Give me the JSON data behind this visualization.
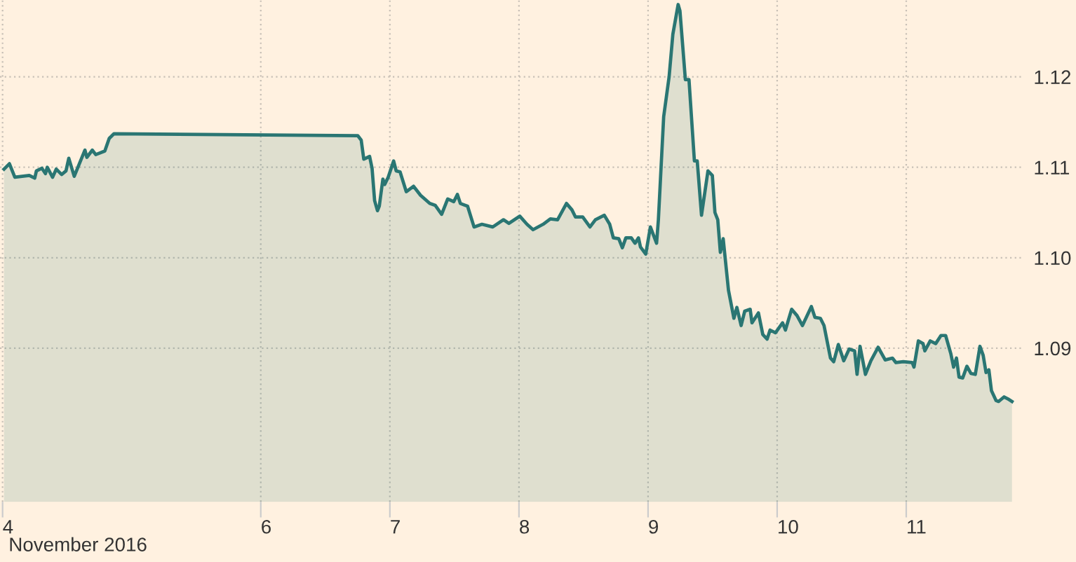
{
  "chart_data": {
    "type": "area",
    "annotations": [
      "November 2016"
    ],
    "series": [
      {
        "color": "#2a7673",
        "x": [
          4.011,
          4.053,
          4.095,
          4.207,
          4.249,
          4.262,
          4.304,
          4.332,
          4.346,
          4.387,
          4.416,
          4.458,
          4.491,
          4.513,
          4.555,
          4.638,
          4.653,
          4.695,
          4.722,
          4.792,
          4.826,
          4.862,
          6.751,
          6.778,
          6.798,
          6.843,
          6.862,
          6.882,
          6.904,
          6.918,
          6.946,
          6.96,
          6.987,
          7.029,
          7.049,
          7.079,
          7.127,
          7.183,
          7.238,
          7.309,
          7.351,
          7.401,
          7.448,
          7.495,
          7.523,
          7.546,
          7.602,
          7.652,
          7.713,
          7.797,
          7.88,
          7.922,
          8.006,
          8.062,
          8.109,
          8.187,
          8.243,
          8.299,
          8.368,
          8.41,
          8.438,
          8.494,
          8.55,
          8.592,
          8.661,
          8.703,
          8.731,
          8.773,
          8.801,
          8.828,
          8.87,
          8.899,
          8.926,
          8.941,
          8.982,
          9.018,
          9.066,
          9.08,
          9.121,
          9.163,
          9.192,
          9.233,
          9.247,
          9.289,
          9.317,
          9.359,
          9.381,
          9.414,
          9.464,
          9.498,
          9.518,
          9.54,
          9.56,
          9.582,
          9.623,
          9.665,
          9.688,
          9.721,
          9.749,
          9.791,
          9.805,
          9.855,
          9.889,
          9.922,
          9.945,
          9.987,
          10.042,
          10.064,
          10.112,
          10.154,
          10.196,
          10.265,
          10.293,
          10.335,
          10.363,
          10.413,
          10.438,
          10.474,
          10.516,
          10.558,
          10.6,
          10.619,
          10.642,
          10.684,
          10.726,
          10.782,
          10.837,
          10.893,
          10.92,
          10.977,
          11.046,
          11.06,
          11.094,
          11.13,
          11.144,
          11.186,
          11.228,
          11.269,
          11.305,
          11.345,
          11.367,
          11.389,
          11.409,
          11.437,
          11.47,
          11.501,
          11.535,
          11.571,
          11.596,
          11.618,
          11.64,
          11.66,
          11.696,
          11.715,
          11.757,
          11.786,
          11.819
        ],
        "values": [
          1.1098,
          1.1104,
          1.1089,
          1.1091,
          1.1088,
          1.1096,
          1.1099,
          1.1093,
          1.11,
          1.1089,
          1.1098,
          1.1092,
          1.1096,
          1.111,
          1.109,
          1.1119,
          1.1111,
          1.1119,
          1.1114,
          1.1118,
          1.1132,
          1.1137,
          1.1135,
          1.113,
          1.1109,
          1.1112,
          1.1099,
          1.1063,
          1.1052,
          1.1057,
          1.1087,
          1.1081,
          1.1089,
          1.1107,
          1.1096,
          1.1095,
          1.1073,
          1.1079,
          1.1069,
          1.106,
          1.1058,
          1.1048,
          1.1065,
          1.1062,
          1.107,
          1.106,
          1.1057,
          1.1034,
          1.1037,
          1.1034,
          1.1042,
          1.1038,
          1.1046,
          1.1037,
          1.1031,
          1.1037,
          1.1043,
          1.1042,
          1.106,
          1.1053,
          1.1045,
          1.1045,
          1.1034,
          1.1042,
          1.1047,
          1.1037,
          1.1022,
          1.1021,
          1.1011,
          1.1022,
          1.1022,
          1.1016,
          1.1022,
          1.1012,
          1.1004,
          1.1034,
          1.1016,
          1.1042,
          1.1156,
          1.12,
          1.1247,
          1.128,
          1.1273,
          1.1197,
          1.1197,
          1.1107,
          1.1107,
          1.1047,
          1.1096,
          1.1091,
          1.105,
          1.1042,
          1.1006,
          1.1021,
          1.0964,
          1.0933,
          1.0945,
          1.0925,
          1.0941,
          1.0943,
          1.0928,
          1.0939,
          1.0915,
          1.091,
          1.092,
          1.0917,
          1.0928,
          1.092,
          1.0943,
          1.0936,
          1.0925,
          1.0946,
          1.0934,
          1.0933,
          1.0925,
          1.0889,
          1.0885,
          1.0904,
          1.0886,
          1.0899,
          1.0897,
          1.0871,
          1.0902,
          1.0871,
          1.0886,
          1.0901,
          1.0887,
          1.0889,
          1.0884,
          1.0885,
          1.0884,
          1.0879,
          1.0908,
          1.0905,
          1.0897,
          1.0908,
          1.0905,
          1.0914,
          1.0914,
          1.0894,
          1.0879,
          1.0889,
          1.0868,
          1.0867,
          1.088,
          1.0872,
          1.0871,
          1.0902,
          1.0892,
          1.0873,
          1.0876,
          1.0853,
          1.0842,
          1.0841,
          1.0846,
          1.0844,
          1.0841
        ]
      }
    ],
    "xlim": [
      3.98,
      11.895
    ],
    "xticks": [
      4,
      6,
      7,
      8,
      9,
      10,
      11
    ],
    "ylim": [
      1.073,
      1.1285
    ],
    "yticks": [
      1.09,
      {
        "value": 1.1,
        "label": "1.10"
      },
      1.11,
      1.12
    ],
    "grid": true,
    "legend": false
  }
}
